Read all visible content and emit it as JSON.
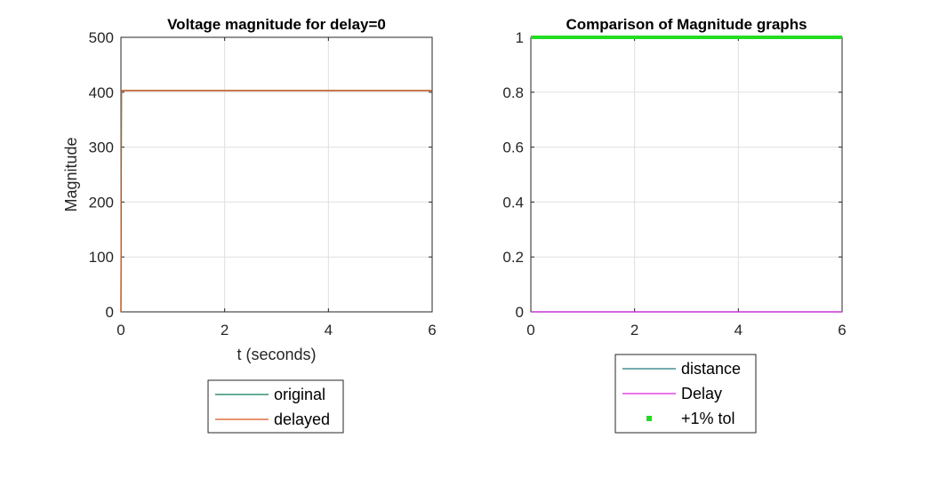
{
  "chart_data": [
    {
      "type": "line",
      "title": "Voltage magnitude for delay=0",
      "xlabel": "t (seconds)",
      "ylabel": "Magnitude",
      "xlim": [
        0,
        6
      ],
      "ylim": [
        0,
        500
      ],
      "xticks": [
        0,
        2,
        4,
        6
      ],
      "yticks": [
        0,
        100,
        200,
        300,
        400,
        500
      ],
      "grid": true,
      "legend_position": "below",
      "series": [
        {
          "name": "original",
          "color": "#0b7a5a",
          "x": [
            0,
            0.01,
            6
          ],
          "y": [
            0,
            403,
            403
          ]
        },
        {
          "name": "delayed",
          "color": "#d95319",
          "x": [
            0,
            0.01,
            6
          ],
          "y": [
            0,
            403,
            403
          ]
        }
      ]
    },
    {
      "type": "line",
      "title": "Comparison of Magnitude graphs",
      "xlabel": "",
      "ylabel": "",
      "xlim": [
        0,
        6
      ],
      "ylim": [
        0,
        1
      ],
      "xticks": [
        0,
        2,
        4,
        6
      ],
      "yticks": [
        0,
        0.2,
        0.4,
        0.6,
        0.8,
        1
      ],
      "grid": true,
      "legend_position": "below",
      "series": [
        {
          "name": "distance",
          "color": "#1f7a7a",
          "x": [
            0,
            6
          ],
          "y": [
            0,
            0
          ]
        },
        {
          "name": "Delay",
          "color": "#e020e0",
          "x": [
            0,
            6
          ],
          "y": [
            0,
            0
          ]
        },
        {
          "name": "+1% tol",
          "color": "#22dd22",
          "x": [
            0,
            6
          ],
          "y": [
            1,
            1
          ]
        }
      ]
    }
  ]
}
